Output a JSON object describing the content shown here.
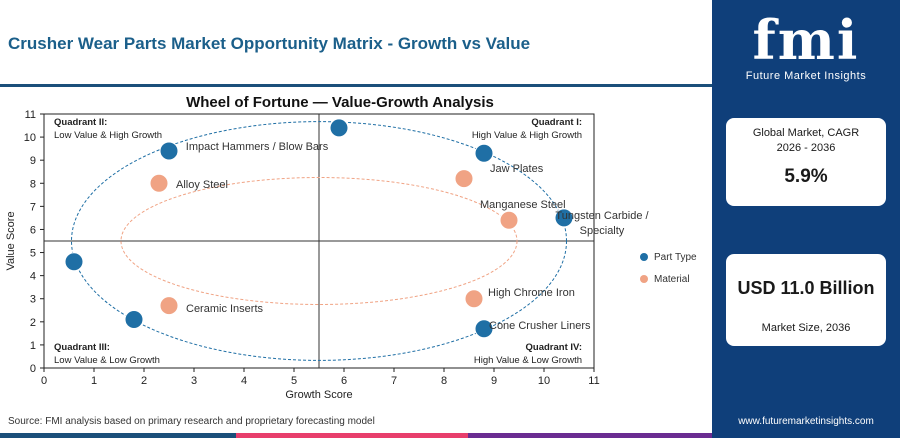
{
  "page": {
    "title": "Crusher Wear Parts Market Opportunity Matrix - Growth vs Value",
    "source": "Source: FMI analysis based on primary research and proprietary forecasting model"
  },
  "brand": {
    "logo_text": "fmi",
    "logo_subtitle": "Future Market Insights",
    "website": "www.futuremarketinsights.com",
    "colors": {
      "navy": "#0f3f7a",
      "part_type": "#1f6fa5",
      "material": "#f0a384"
    }
  },
  "metrics": {
    "cagr_label": "Global Market, CAGR 2026 - 2036",
    "cagr_value": "5.9%",
    "size_value": "USD 11.0 Billion",
    "size_label": "Market Size, 2036"
  },
  "quadrants": {
    "q1": {
      "title": "Quadrant I:",
      "desc": "High Value & High Growth"
    },
    "q2": {
      "title": "Quadrant II:",
      "desc": "Low Value & High Growth"
    },
    "q3": {
      "title": "Quadrant III:",
      "desc": "Low Value & Low Growth"
    },
    "q4": {
      "title": "Quadrant IV:",
      "desc": "High Value & Low Growth"
    }
  },
  "chart_data": {
    "type": "scatter",
    "title": "Wheel of Fortune — Value-Growth Analysis",
    "xlabel": "Growth Score",
    "ylabel": "Value Score",
    "xlim": [
      0,
      11
    ],
    "ylim": [
      0,
      11
    ],
    "xticks": [
      0,
      1,
      2,
      3,
      4,
      5,
      6,
      7,
      8,
      9,
      10,
      11
    ],
    "yticks": [
      0,
      1,
      2,
      3,
      4,
      5,
      6,
      7,
      8,
      9,
      10,
      11
    ],
    "divider_x": 5.5,
    "divider_y": 5.5,
    "legend_position": "right",
    "series": [
      {
        "name": "Part Type",
        "color": "#1f6fa5",
        "points": [
          {
            "label": "",
            "x": 5.9,
            "y": 10.4
          },
          {
            "label": "Impact Hammers / Blow Bars",
            "x": 2.5,
            "y": 9.4
          },
          {
            "label": "Jaw Plates",
            "x": 8.8,
            "y": 9.3
          },
          {
            "label": "Tungsten Carbide / Specialty",
            "x": 10.4,
            "y": 6.5
          },
          {
            "label": "",
            "x": 0.6,
            "y": 4.6
          },
          {
            "label": "",
            "x": 1.8,
            "y": 2.1
          },
          {
            "label": "Cone Crusher Liners",
            "x": 8.8,
            "y": 1.7
          }
        ]
      },
      {
        "name": "Material",
        "color": "#f0a384",
        "points": [
          {
            "label": "Alloy Steel",
            "x": 2.3,
            "y": 8.0
          },
          {
            "label": "Manganese Steel",
            "x": 8.4,
            "y": 8.2
          },
          {
            "label": "",
            "x": 9.3,
            "y": 6.4
          },
          {
            "label": "High Chrome Iron",
            "x": 8.6,
            "y": 3.0
          },
          {
            "label": "Ceramic Inserts",
            "x": 2.5,
            "y": 2.7
          }
        ]
      }
    ]
  }
}
